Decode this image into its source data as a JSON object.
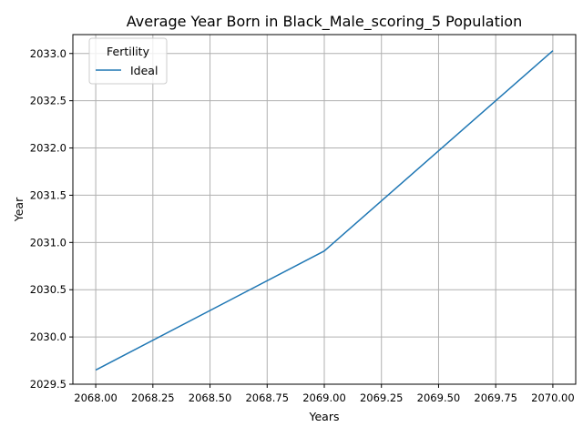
{
  "chart_data": {
    "type": "line",
    "title": "Average Year Born in Black_Male_scoring_5 Population",
    "xlabel": "Years",
    "ylabel": "Year",
    "xlim": [
      2067.9,
      2070.1
    ],
    "ylim": [
      2029.5,
      2033.2
    ],
    "xticks": [
      2068.0,
      2068.25,
      2068.5,
      2068.75,
      2069.0,
      2069.25,
      2069.5,
      2069.75,
      2070.0
    ],
    "xtick_labels": [
      "2068.00",
      "2068.25",
      "2068.50",
      "2068.75",
      "2069.00",
      "2069.25",
      "2069.50",
      "2069.75",
      "2070.00"
    ],
    "yticks": [
      2029.5,
      2030.0,
      2030.5,
      2031.0,
      2031.5,
      2032.0,
      2032.5,
      2033.0
    ],
    "ytick_labels": [
      "2029.5",
      "2030.0",
      "2030.5",
      "2031.0",
      "2031.5",
      "2032.0",
      "2032.5",
      "2033.0"
    ],
    "grid": true,
    "legend": {
      "title": "Fertility",
      "placement": "upper-left"
    },
    "series": [
      {
        "name": "Ideal",
        "color": "#1f77b4",
        "x": [
          2068.0,
          2069.0,
          2070.0
        ],
        "y": [
          2029.65,
          2030.91,
          2033.03
        ]
      }
    ]
  }
}
